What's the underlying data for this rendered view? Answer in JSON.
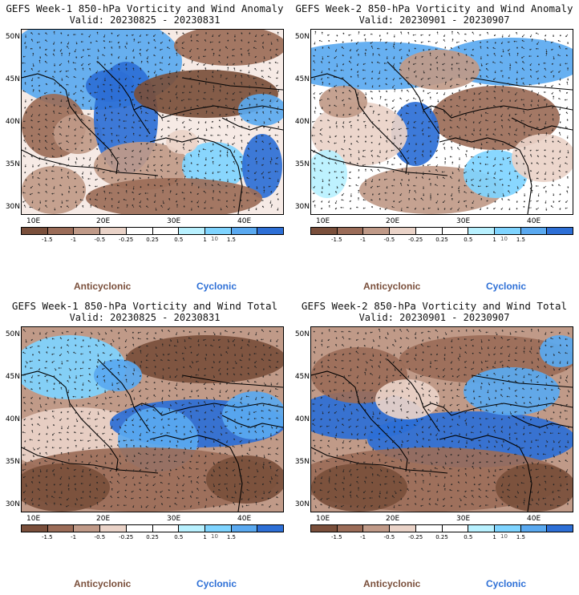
{
  "colors": {
    "anticyclonic": "#7a4f3b",
    "cyclonic": "#2d6fd6",
    "scale": [
      "#7a4f3b",
      "#9b6c58",
      "#c09a88",
      "#ead3c8",
      "#ffffff",
      "#ffffff",
      "#b9f1ff",
      "#7fd4ff",
      "#5aa9f0",
      "#2d6fd6"
    ]
  },
  "axes": {
    "lat_labels": [
      "50N",
      "45N",
      "40N",
      "35N",
      "30N"
    ],
    "lon_labels": [
      "10E",
      "20E",
      "30E",
      "40E"
    ]
  },
  "colorbar": {
    "labels": [
      "-1.5",
      "-1",
      "-0.5",
      "-0.25",
      "0.25",
      "0.5",
      "1",
      "1.5"
    ],
    "unit": "10"
  },
  "legend": {
    "anticyclonic": "Anticyclonic",
    "cyclonic": "Cyclonic"
  },
  "panels": [
    {
      "title": "GEFS Week-1 850-hPa Vorticity and Wind Anomaly",
      "valid": "Valid: 20230825 - 20230831"
    },
    {
      "title": "GEFS Week-2 850-hPa Vorticity and Wind Anomaly",
      "valid": "Valid: 20230901 - 20230907"
    },
    {
      "title": "GEFS Week-1 850-hPa Vorticity and Wind Total",
      "valid": "Valid: 20230825 - 20230831"
    },
    {
      "title": "GEFS Week-2 850-hPa Vorticity and Wind Total",
      "valid": "Valid: 20230901 - 20230907"
    }
  ]
}
